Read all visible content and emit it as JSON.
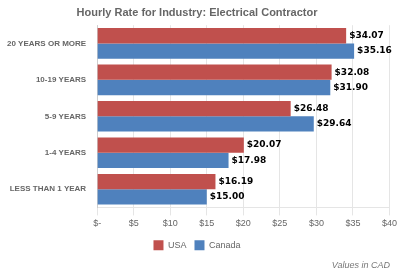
{
  "chart_data": {
    "type": "bar",
    "orientation": "horizontal",
    "title": "Hourly Rate for Industry: Electrical Contractor",
    "categories": [
      "LESS THAN 1 YEAR",
      "1-4 YEARS",
      "5-9 YEARS",
      "10-19 YEARS",
      "20 YEARS OR MORE"
    ],
    "series": [
      {
        "name": "USA",
        "color": "#c0504d",
        "values": [
          16.19,
          20.07,
          26.48,
          32.08,
          34.07
        ],
        "value_labels": [
          "$16.19",
          "$20.07",
          "$26.48",
          "$32.08",
          "$34.07"
        ]
      },
      {
        "name": "Canada",
        "color": "#4f81bd",
        "values": [
          15.0,
          17.98,
          29.64,
          31.9,
          35.16
        ],
        "value_labels": [
          "$15.00",
          "$17.98",
          "$29.64",
          "$31.90",
          "$35.16"
        ]
      }
    ],
    "xlim": [
      0,
      40
    ],
    "xticks": [
      {
        "value": 0,
        "label": "$-"
      },
      {
        "value": 5,
        "label": "$5"
      },
      {
        "value": 10,
        "label": "$10"
      },
      {
        "value": 15,
        "label": "$15"
      },
      {
        "value": 20,
        "label": "$20"
      },
      {
        "value": 25,
        "label": "$25"
      },
      {
        "value": 30,
        "label": "$30"
      },
      {
        "value": 35,
        "label": "$35"
      },
      {
        "value": 40,
        "label": "$40"
      }
    ],
    "data_labels": true,
    "grid": true,
    "legend": "bottom",
    "annotations": [
      "Values in CAD"
    ]
  }
}
